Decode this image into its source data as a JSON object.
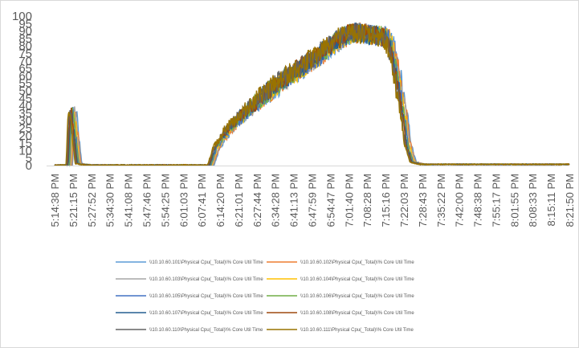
{
  "chart_data": {
    "type": "line",
    "title": "",
    "xlabel": "",
    "ylabel": "",
    "ylim": [
      0,
      100
    ],
    "yticks": [
      0,
      5,
      10,
      15,
      20,
      25,
      30,
      35,
      40,
      45,
      50,
      55,
      60,
      65,
      70,
      75,
      80,
      85,
      90,
      95,
      100
    ],
    "grid": false,
    "legend_position": "bottom",
    "x_categories": [
      "5:14:38 PM",
      "5:21:15 PM",
      "5:27:52 PM",
      "5:34:30 PM",
      "5:41:08 PM",
      "5:47:46 PM",
      "5:54:25 PM",
      "6:01:03 PM",
      "6:07:41 PM",
      "6:14:20 PM",
      "6:21:01 PM",
      "6:27:44 PM",
      "6:34:28 PM",
      "6:41:13 PM",
      "6:47:59 PM",
      "6:54:47 PM",
      "7:01:40 PM",
      "7:08:28 PM",
      "7:15:16 PM",
      "7:22:03 PM",
      "7:28:43 PM",
      "7:35:22 PM",
      "7:42:00 PM",
      "7:48:38 PM",
      "7:55:17 PM",
      "8:01:55 PM",
      "8:08:33 PM",
      "8:15:11 PM",
      "8:21:50 PM"
    ],
    "profile_x": [
      0,
      0.8,
      0.9,
      1.0,
      1.1,
      1.3,
      1.5,
      2.0,
      8.5,
      8.8,
      9.5,
      10.5,
      11.5,
      12.5,
      13.5,
      14.5,
      15.3,
      16.0,
      16.5,
      17.0,
      17.5,
      18.0,
      18.3,
      18.6,
      19.0,
      19.2,
      19.5,
      20.0,
      28.5
    ],
    "profile_y": [
      0,
      0,
      30,
      36,
      25,
      1,
      0.5,
      0,
      0,
      12,
      25,
      37,
      48,
      58,
      66,
      75,
      83,
      88,
      89,
      88,
      87,
      86,
      80,
      62,
      35,
      15,
      2,
      0.5,
      0.5
    ],
    "series": [
      {
        "name": "\\\\10.10.60.101\\Physical Cpu(_Total)\\% Core Util Time",
        "color": "#5b9bd5"
      },
      {
        "name": "\\\\10.10.60.102\\Physical Cpu(_Total)\\% Core Util Time",
        "color": "#ed7d31"
      },
      {
        "name": "\\\\10.10.60.103\\Physical Cpu(_Total)\\% Core Util Time",
        "color": "#a5a5a5"
      },
      {
        "name": "\\\\10.10.60.104\\Physical Cpu(_Total)\\% Core Util Time",
        "color": "#ffc000"
      },
      {
        "name": "\\\\10.10.60.105\\Physical Cpu(_Total)\\% Core Util Time",
        "color": "#4472c4"
      },
      {
        "name": "\\\\10.10.60.106\\Physical Cpu(_Total)\\% Core Util Time",
        "color": "#70ad47"
      },
      {
        "name": "\\\\10.10.60.107\\Physical Cpu(_Total)\\% Core Util Time",
        "color": "#255e91"
      },
      {
        "name": "\\\\10.10.60.108\\Physical Cpu(_Total)\\% Core Util Time",
        "color": "#9e480e"
      },
      {
        "name": "\\\\10.10.60.110\\Physical Cpu(_Total)\\% Core Util Time",
        "color": "#636363"
      },
      {
        "name": "\\\\10.10.60.111\\Physical Cpu(_Total)\\% Core Util Time",
        "color": "#997300"
      }
    ]
  }
}
